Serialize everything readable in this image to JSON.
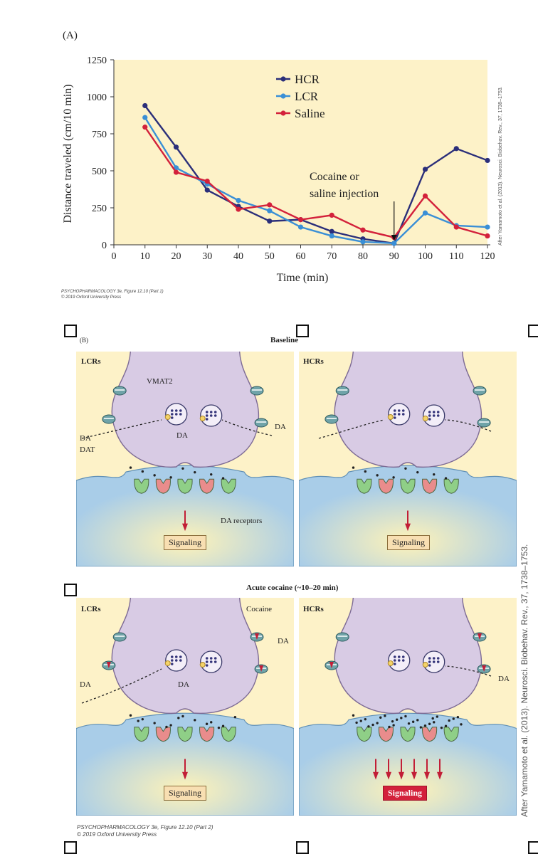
{
  "panel_a": {
    "letter": "(A)",
    "credit_line1": "PSYCHOPHARMACOLOGY 3e, Figure 12.10 (Part 1)",
    "credit_line2": "© 2019 Oxford University Press",
    "side_credit": "After Yamamoto et al. (2013). Neurosci. Biobehav. Rev., 37, 1738–1753."
  },
  "chart_data": {
    "type": "line",
    "title": "",
    "xlabel": "Time (min)",
    "ylabel": "Distance traveled (cm/10 min)",
    "x": [
      10,
      20,
      30,
      40,
      50,
      60,
      70,
      80,
      90,
      100,
      110,
      120
    ],
    "xticks": [
      0,
      10,
      20,
      30,
      40,
      50,
      60,
      70,
      80,
      90,
      100,
      110,
      120
    ],
    "yticks": [
      0,
      250,
      500,
      750,
      1000,
      1250
    ],
    "xlim": [
      0,
      120
    ],
    "ylim": [
      0,
      1250
    ],
    "legend_position": "top-center",
    "series": [
      {
        "name": "HCR",
        "color": "#2b2f7a",
        "values": [
          940,
          660,
          370,
          260,
          160,
          170,
          90,
          40,
          10,
          510,
          650,
          570
        ]
      },
      {
        "name": "LCR",
        "color": "#3a8fd6",
        "values": [
          860,
          520,
          410,
          300,
          230,
          120,
          60,
          20,
          10,
          215,
          130,
          120
        ]
      },
      {
        "name": "Saline",
        "color": "#d3213b",
        "values": [
          795,
          490,
          430,
          240,
          270,
          170,
          200,
          100,
          50,
          330,
          120,
          60
        ]
      }
    ],
    "annotation": {
      "line1": "Cocaine or",
      "line2": "saline injection",
      "at_x": 90
    }
  },
  "panel_b": {
    "letter": "(B)",
    "baseline_title": "Baseline",
    "acute_title": "Acute cocaine (~10–20 min)",
    "lcr_label": "LCRs",
    "hcr_label": "HCRs",
    "vmat2": "VMAT2",
    "da": "DA",
    "dat": "DAT",
    "da_receptors": "DA receptors",
    "cocaine": "Cocaine",
    "signaling": "Signaling",
    "credit_line1": "PSYCHOPHARMACOLOGY 3e, Figure 12.10 (Part 2)",
    "credit_line2": "© 2019 Oxford University Press",
    "side_credit": "After Yamamoto et al. (2013). Neurosci. Biobehav. Rev., 37, 1738–1753."
  },
  "colors": {
    "chart_bg": "#fdf2c8",
    "neuron": "#d8cbe4",
    "post": "#a9cde8",
    "receptor_green": "#8fcf87",
    "receptor_red": "#e98c8c",
    "transporter": "#6fa3a8",
    "cocaine": "#c21e36"
  }
}
